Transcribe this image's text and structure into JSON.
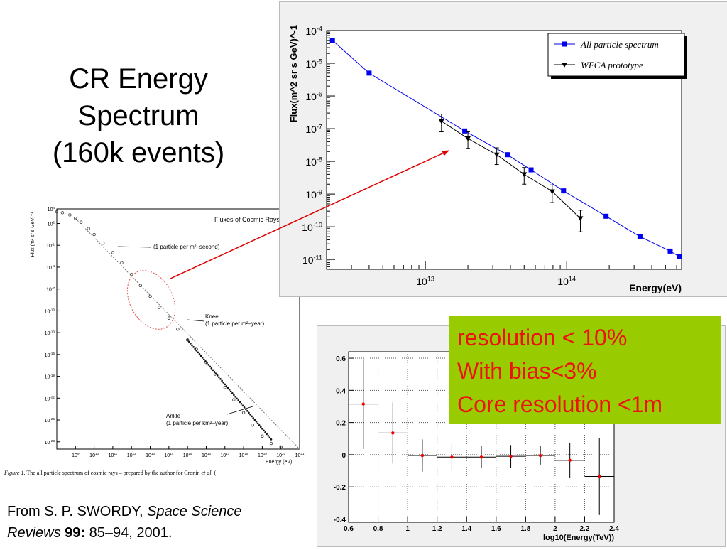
{
  "slide": {
    "title_lines": [
      "CR Energy",
      "Spectrum",
      "(160k events)"
    ],
    "citation": {
      "line1_plain": "From S. P. SWORDY, ",
      "line1_italic": "Space Science",
      "line2_italic": "Reviews",
      "line2_bold": " 99:",
      "line2_plain": " 85–94, 2001."
    },
    "callout_lines": [
      "resolution < 10%",
      "With bias<3%",
      "Core resolution <1m"
    ],
    "colors": {
      "callout_bg": "#99cc00",
      "callout_text": "#ee1111",
      "arrow": "#dd0000",
      "series_blue": "#0000ee",
      "series_black": "#000000",
      "bias_marker": "#ee0000"
    }
  },
  "chart_data": [
    {
      "type": "line",
      "ylabel": "Flux(m^2 sr s GeV)^-1",
      "xlabel": "Energy(eV)",
      "xscale": "log",
      "yscale": "log",
      "xlim": [
        2000000000000.0,
        650000000000000.0
      ],
      "ylim": [
        5e-12,
        0.0001
      ],
      "x_ticks": [
        {
          "value": 10000000000000.0,
          "label": "10",
          "exp": "13"
        },
        {
          "value": 100000000000000.0,
          "label": "10",
          "exp": "14"
        }
      ],
      "y_ticks": [
        {
          "value": 0.0001,
          "label": "10",
          "exp": "-4"
        },
        {
          "value": 1e-05,
          "label": "10",
          "exp": "-5"
        },
        {
          "value": 1e-06,
          "label": "10",
          "exp": "-6"
        },
        {
          "value": 1e-07,
          "label": "10",
          "exp": "-7"
        },
        {
          "value": 1e-08,
          "label": "10",
          "exp": "-8"
        },
        {
          "value": 1e-09,
          "label": "10",
          "exp": "-9"
        },
        {
          "value": 1e-10,
          "label": "10",
          "exp": "-10"
        },
        {
          "value": 1e-11,
          "label": "10",
          "exp": "-11"
        }
      ],
      "legend": {
        "position": "top-right",
        "entries": [
          "All particle spectrum",
          "WFCA prototype"
        ]
      },
      "series": [
        {
          "name": "All particle spectrum",
          "color": "#0000ee",
          "marker": "square",
          "x": [
            2200000000000.0,
            4000000000000.0,
            19000000000000.0,
            38000000000000.0,
            56000000000000.0,
            95000000000000.0,
            190000000000000.0,
            330000000000000.0,
            540000000000000.0,
            630000000000000.0
          ],
          "y": [
            5e-05,
            5e-06,
            8.5e-08,
            1.6e-08,
            5.5e-09,
            1.25e-09,
            2.1e-10,
            5e-11,
            1.8e-11,
            1.2e-11
          ]
        },
        {
          "name": "WFCA prototype",
          "color": "#000000",
          "marker": "triangle-down",
          "x": [
            13000000000000.0,
            20000000000000.0,
            32000000000000.0,
            50000000000000.0,
            79000000000000.0,
            125000000000000.0
          ],
          "y": [
            1.7e-07,
            5e-08,
            1.6e-08,
            4e-09,
            1.2e-09,
            1.8e-10
          ],
          "y_low": [
            8e-08,
            2.5e-08,
            8e-09,
            2e-09,
            5.5e-10,
            7e-11
          ],
          "y_high": [
            2.8e-07,
            8e-08,
            2.6e-08,
            6.5e-09,
            1.9e-09,
            3.2e-10
          ]
        }
      ]
    },
    {
      "type": "scatter",
      "xlabel": "log10(Energy(TeV))",
      "xlim": [
        0.6,
        2.4
      ],
      "ylim": [
        -0.42,
        0.64
      ],
      "x_ticks": [
        0.6,
        0.8,
        1,
        1.2,
        1.4,
        1.6,
        1.8,
        2,
        2.2,
        2.4
      ],
      "x_tick_labels": [
        "0.6",
        "0.8",
        "1",
        "1.2",
        "1.4",
        "1.6",
        "1.8",
        "2",
        "2.2",
        "2.4"
      ],
      "y_ticks": [
        0.6,
        0.4,
        0.2,
        0,
        -0.2,
        -0.4
      ],
      "y_tick_labels": [
        "0.6",
        "0.4",
        "0.2",
        "0",
        "-0.2",
        "-0.4"
      ],
      "grid": true,
      "series": [
        {
          "color": "#ee0000",
          "x": [
            0.7,
            0.9,
            1.1,
            1.3,
            1.5,
            1.7,
            1.9,
            2.1,
            2.3
          ],
          "y": [
            0.315,
            0.135,
            -0.005,
            -0.015,
            -0.015,
            -0.01,
            -0.005,
            -0.035,
            -0.135
          ],
          "y_err": [
            0.28,
            0.19,
            0.1,
            0.08,
            0.07,
            0.07,
            0.06,
            0.11,
            0.24
          ],
          "x_halfwidth": 0.1
        }
      ]
    },
    {
      "type": "scatter",
      "title": "Fluxes of Cosmic Rays",
      "ylabel": "Flux (m² sr s GeV)⁻¹",
      "xlabel": "Energy (eV)",
      "xscale": "log",
      "yscale": "log",
      "xlim": [
        100000000.0,
        1e+21
      ],
      "ylim": [
        1e-29,
        10000.0
      ],
      "x_ticks": [
        {
          "value": 1000000000.0,
          "label": "10",
          "exp": "9"
        },
        {
          "value": 10000000000.0,
          "label": "10",
          "exp": "10"
        },
        {
          "value": 100000000000.0,
          "label": "10",
          "exp": "11"
        },
        {
          "value": 1000000000000.0,
          "label": "10",
          "exp": "12"
        },
        {
          "value": 10000000000000.0,
          "label": "10",
          "exp": "13"
        },
        {
          "value": 100000000000000.0,
          "label": "10",
          "exp": "14"
        },
        {
          "value": 1000000000000000.0,
          "label": "10",
          "exp": "15"
        },
        {
          "value": 1e+16,
          "label": "10",
          "exp": "16"
        },
        {
          "value": 1e+17,
          "label": "10",
          "exp": "17"
        },
        {
          "value": 1e+18,
          "label": "10",
          "exp": "18"
        },
        {
          "value": 1e+19,
          "label": "10",
          "exp": "19"
        },
        {
          "value": 1e+20,
          "label": "10",
          "exp": "20"
        },
        {
          "value": 1e+21,
          "label": "10",
          "exp": "21"
        }
      ],
      "y_ticks": [
        {
          "value": 10000.0,
          "label": "10",
          "exp": "4"
        },
        {
          "value": 100.0,
          "label": "10",
          "exp": "2"
        },
        {
          "value": 0.1,
          "label": "10",
          "exp": "-1"
        },
        {
          "value": 0.0001,
          "label": "10",
          "exp": "-4"
        },
        {
          "value": 1e-07,
          "label": "10",
          "exp": "-7"
        },
        {
          "value": 1e-10,
          "label": "10",
          "exp": "-10"
        },
        {
          "value": 1e-13,
          "label": "10",
          "exp": "-13"
        },
        {
          "value": 1e-16,
          "label": "10",
          "exp": "-16"
        },
        {
          "value": 1e-19,
          "label": "10",
          "exp": "-19"
        },
        {
          "value": 1e-22,
          "label": "10",
          "exp": "-22"
        },
        {
          "value": 1e-25,
          "label": "10",
          "exp": "-25"
        },
        {
          "value": 1e-28,
          "label": "10",
          "exp": "-28"
        }
      ],
      "annotations": [
        {
          "lines": [
            "(1 particle per m²–second)"
          ],
          "x": 5000000000000.0,
          "y": 0.1
        },
        {
          "lines": [
            "Knee",
            "(1 particle per m²–year)"
          ],
          "x": 5000000000000000.0,
          "y": 1e-12
        },
        {
          "lines": [
            "Ankle",
            "(1 particle per km²–year)"
          ],
          "x": 2e+18,
          "y": 1e-24
        }
      ],
      "caption": {
        "label": "Figure 1.",
        "text": " The all particle spectrum of cosmic rays – prepared by the author for Cronin ",
        "italic": "et al.",
        "tail": " ("
      },
      "series": [
        {
          "x": [
            100000000.0,
            200000000.0,
            500000000.0,
            1000000000.0,
            2000000000.0,
            5000000000.0,
            10000000000.0,
            30000000000.0,
            100000000000.0,
            300000000000.0,
            1000000000000.0,
            3000000000000.0,
            10000000000000.0,
            30000000000000.0,
            100000000000000.0,
            300000000000000.0,
            1000000000000000.0,
            3000000000000000.0,
            1e+16,
            3e+16,
            1e+17,
            3e+17,
            1e+18,
            3e+18,
            1e+19,
            3e+19,
            1e+20
          ],
          "y": [
            4000,
            3000,
            1500,
            500,
            150,
            20,
            3,
            0.2,
            0.01,
            0.0004,
            1e-05,
            3e-07,
            1e-08,
            3e-10,
            1e-11,
            3e-13,
            1e-14,
            5e-16,
            8e-18,
            2e-19,
            3e-21,
            6e-23,
            1e-24,
            2e-26,
            6e-28,
            6e-29,
            2e-29
          ]
        }
      ]
    }
  ]
}
